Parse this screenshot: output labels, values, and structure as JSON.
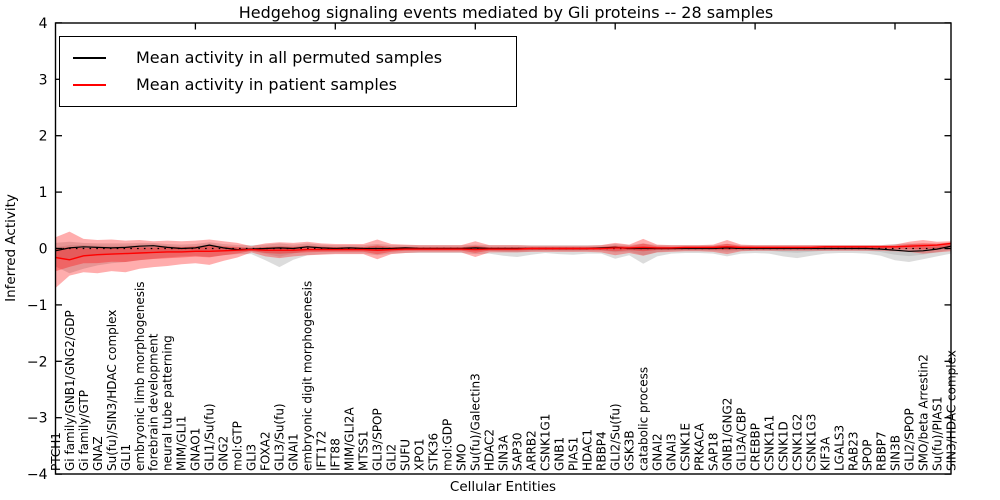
{
  "figure": {
    "title": "Hedgehog signaling events mediated by Gli proteins -- 28 samples",
    "xlabel": "Cellular Entities",
    "ylabel": "Inferred Activity",
    "legend": {
      "permuted_label": "Mean activity in all permuted samples",
      "patient_label": "Mean activity in patient samples"
    },
    "colors": {
      "permuted_line": "#000000",
      "patient_line": "#ff0000",
      "permuted_band": "#808080",
      "patient_band": "#ff0000",
      "frame": "#000000"
    }
  },
  "chart_data": {
    "type": "line",
    "title": "Hedgehog signaling events mediated by Gli proteins -- 28 samples",
    "xlabel": "Cellular Entities",
    "ylabel": "Inferred Activity",
    "ylim": [
      -4,
      4
    ],
    "y_ticks": [
      4,
      3,
      2,
      1,
      0,
      -1,
      -2,
      -3,
      -4
    ],
    "grid": false,
    "legend_position": "upper left",
    "zero_line": true,
    "categories": [
      "PTCH1",
      "Gi family/GNB1/GNG2/GDP",
      "Gi family/GTP",
      "GNAZ",
      "Su(fu)/SIN3/HDAC complex",
      "GLI1",
      "embryonic limb morphogenesis",
      "forebrain development",
      "neural tube patterning",
      "MIM/GLI1",
      "GNAO1",
      "GLI1/Su(fu)",
      "GNG2",
      "mol:GTP",
      "GLI3",
      "FOXA2",
      "GLI3/Su(fu)",
      "GNAI1",
      "embryonic digit morphogenesis",
      "IFT172",
      "IFT88",
      "MIM/GLI2A",
      "MTSS1",
      "GLI3/SPOP",
      "GLI2",
      "SUFU",
      "XPO1",
      "STK36",
      "mol:GDP",
      "SMO",
      "Su(fu)/Galectin3",
      "HDAC2",
      "SIN3A",
      "SAP30",
      "ARRB2",
      "CSNK1G1",
      "GNB1",
      "PIAS1",
      "HDAC1",
      "RBBP4",
      "GLI2/Su(fu)",
      "GSK3B",
      "catabolic process",
      "GNAI2",
      "GNAI3",
      "CSNK1E",
      "PRKACA",
      "SAP18",
      "GNB1/GNG2",
      "GLI3A/CBP",
      "CREBBP",
      "CSNK1A1",
      "CSNK1D",
      "CSNK1G2",
      "CSNK1G3",
      "KIF3A",
      "LGALS3",
      "RAB23",
      "SPOP",
      "RBBP7",
      "SIN3B",
      "GLI2/SPOP",
      "SMO/beta Arrestin2",
      "Su(fu)/PIAS1",
      "SIN3/HDAC complex"
    ],
    "series": [
      {
        "name": "Mean activity in all permuted samples",
        "color": "#000000",
        "values": [
          -0.04,
          0.01,
          0.03,
          0.02,
          0.01,
          0.02,
          0.04,
          0.05,
          0.02,
          0.0,
          0.01,
          0.06,
          0.01,
          -0.02,
          -0.01,
          0.0,
          0.01,
          0.0,
          0.03,
          0.01,
          0.0,
          0.01,
          0.0,
          0.0,
          0.0,
          0.01,
          0.0,
          0.0,
          0.0,
          0.0,
          0.01,
          0.0,
          0.0,
          0.0,
          0.0,
          0.0,
          0.0,
          0.0,
          0.0,
          0.01,
          0.02,
          0.0,
          0.0,
          0.0,
          0.0,
          0.0,
          0.0,
          0.0,
          0.01,
          0.0,
          0.0,
          0.0,
          0.0,
          0.0,
          0.0,
          0.0,
          0.0,
          0.0,
          0.0,
          -0.01,
          -0.03,
          -0.05,
          -0.04,
          -0.01,
          0.04
        ]
      },
      {
        "name": "Mean activity in patient samples",
        "color": "#ff0000",
        "values": [
          -0.16,
          -0.2,
          -0.13,
          -0.11,
          -0.1,
          -0.09,
          -0.08,
          -0.07,
          -0.06,
          -0.06,
          -0.05,
          -0.05,
          -0.04,
          -0.03,
          -0.02,
          -0.03,
          -0.03,
          -0.03,
          -0.02,
          -0.02,
          -0.02,
          -0.02,
          -0.02,
          -0.03,
          -0.02,
          -0.01,
          -0.01,
          -0.01,
          -0.01,
          -0.01,
          -0.02,
          -0.01,
          -0.01,
          -0.01,
          0.0,
          0.0,
          0.0,
          0.0,
          0.0,
          0.0,
          0.01,
          0.01,
          0.02,
          0.01,
          0.01,
          0.02,
          0.02,
          0.02,
          0.03,
          0.02,
          0.02,
          0.02,
          0.02,
          0.02,
          0.02,
          0.03,
          0.03,
          0.03,
          0.03,
          0.03,
          0.03,
          0.04,
          0.05,
          0.06,
          0.09
        ]
      }
    ],
    "bands": [
      {
        "name": "permuted-range",
        "color": "#808080",
        "upper": [
          0.1,
          0.12,
          0.1,
          0.09,
          0.09,
          0.09,
          0.1,
          0.1,
          0.08,
          0.07,
          0.08,
          0.11,
          0.08,
          0.06,
          0.06,
          0.07,
          0.09,
          0.07,
          0.09,
          0.07,
          0.06,
          0.06,
          0.06,
          0.08,
          0.06,
          0.06,
          0.06,
          0.06,
          0.06,
          0.06,
          0.07,
          0.06,
          0.06,
          0.06,
          0.06,
          0.06,
          0.06,
          0.06,
          0.06,
          0.06,
          0.08,
          0.06,
          0.09,
          0.06,
          0.06,
          0.06,
          0.06,
          0.06,
          0.08,
          0.06,
          0.06,
          0.06,
          0.06,
          0.06,
          0.06,
          0.06,
          0.06,
          0.06,
          0.06,
          0.06,
          0.08,
          0.09,
          0.08,
          0.07,
          0.09
        ],
        "lower": [
          -0.32,
          -0.44,
          -0.36,
          -0.3,
          -0.26,
          -0.24,
          -0.21,
          -0.18,
          -0.16,
          -0.14,
          -0.13,
          -0.15,
          -0.12,
          -0.1,
          -0.1,
          -0.21,
          -0.33,
          -0.2,
          -0.12,
          -0.1,
          -0.09,
          -0.09,
          -0.09,
          -0.12,
          -0.09,
          -0.08,
          -0.08,
          -0.08,
          -0.08,
          -0.08,
          -0.1,
          -0.09,
          -0.13,
          -0.15,
          -0.11,
          -0.08,
          -0.1,
          -0.11,
          -0.09,
          -0.09,
          -0.18,
          -0.12,
          -0.27,
          -0.14,
          -0.09,
          -0.08,
          -0.08,
          -0.09,
          -0.14,
          -0.09,
          -0.08,
          -0.09,
          -0.14,
          -0.17,
          -0.13,
          -0.09,
          -0.08,
          -0.08,
          -0.09,
          -0.13,
          -0.21,
          -0.24,
          -0.19,
          -0.14,
          -0.09
        ]
      },
      {
        "name": "patient-range",
        "color": "#ff0000",
        "upper": [
          0.2,
          0.3,
          0.17,
          0.15,
          0.16,
          0.14,
          0.15,
          0.13,
          0.14,
          0.13,
          0.14,
          0.16,
          0.13,
          0.1,
          0.04,
          0.09,
          0.11,
          0.1,
          0.12,
          0.09,
          0.08,
          0.08,
          0.08,
          0.16,
          0.08,
          0.07,
          0.06,
          0.06,
          0.06,
          0.06,
          0.13,
          0.06,
          0.06,
          0.06,
          0.05,
          0.05,
          0.05,
          0.05,
          0.05,
          0.06,
          0.1,
          0.07,
          0.17,
          0.07,
          0.06,
          0.06,
          0.06,
          0.07,
          0.15,
          0.07,
          0.06,
          0.06,
          0.06,
          0.06,
          0.06,
          0.06,
          0.06,
          0.06,
          0.06,
          0.06,
          0.07,
          0.12,
          0.15,
          0.12,
          0.13
        ],
        "lower": [
          -0.7,
          -0.48,
          -0.42,
          -0.44,
          -0.4,
          -0.42,
          -0.36,
          -0.33,
          -0.31,
          -0.28,
          -0.26,
          -0.29,
          -0.22,
          -0.16,
          -0.07,
          -0.14,
          -0.17,
          -0.14,
          -0.12,
          -0.11,
          -0.1,
          -0.1,
          -0.1,
          -0.19,
          -0.1,
          -0.08,
          -0.07,
          -0.07,
          -0.07,
          -0.07,
          -0.15,
          -0.07,
          -0.07,
          -0.07,
          -0.06,
          -0.06,
          -0.06,
          -0.06,
          -0.06,
          -0.07,
          -0.12,
          -0.08,
          -0.13,
          -0.07,
          -0.06,
          -0.05,
          -0.05,
          -0.06,
          -0.1,
          -0.05,
          -0.04,
          -0.04,
          -0.04,
          -0.04,
          -0.04,
          -0.04,
          -0.04,
          -0.04,
          -0.04,
          -0.04,
          -0.05,
          -0.06,
          -0.09,
          -0.07,
          -0.05
        ]
      }
    ]
  }
}
